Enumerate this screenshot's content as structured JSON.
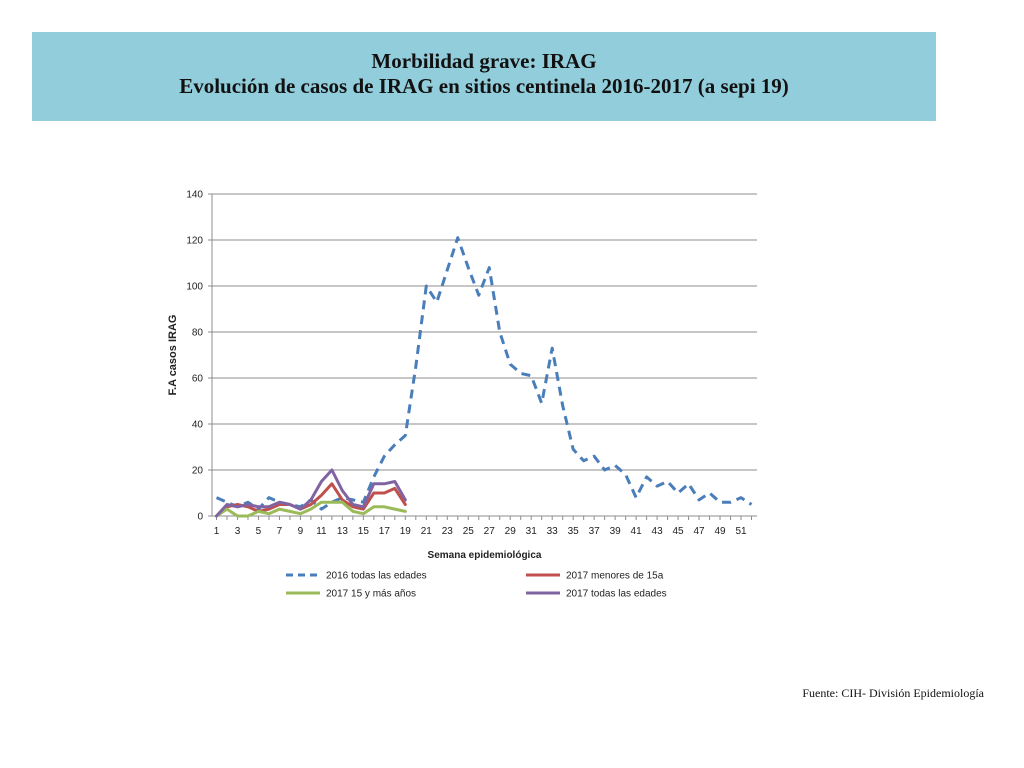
{
  "header": {
    "title": "Morbilidad grave: IRAG",
    "subtitle": "Evolución de casos de IRAG en sitios centinela 2016-2017 (a sepi 19)"
  },
  "source": "Fuente: CIH- División Epidemiología",
  "colors": {
    "banner": "#92cddc",
    "s2016": "#4a7ebb",
    "s2017_menores": "#c0504d",
    "s2017_15mas": "#9bbb59",
    "s2017_todas": "#8064a2",
    "grid": "#8c8c8c"
  },
  "chart_data": {
    "type": "line",
    "title": "",
    "xlabel": "Semana epidemiológica",
    "ylabel": "F.A casos IRAG",
    "xlim": [
      1,
      52
    ],
    "ylim": [
      0,
      140
    ],
    "y_ticks": [
      0,
      20,
      40,
      60,
      80,
      100,
      120,
      140
    ],
    "x_ticks": [
      1,
      3,
      5,
      7,
      9,
      11,
      13,
      15,
      17,
      19,
      21,
      23,
      25,
      27,
      29,
      31,
      33,
      35,
      37,
      39,
      41,
      43,
      45,
      47,
      49,
      51
    ],
    "grid": "horizontal",
    "legend_position": "bottom",
    "series": [
      {
        "name": "2016 todas las edades",
        "style": "dashed",
        "x": [
          1,
          2,
          3,
          4,
          5,
          6,
          7,
          8,
          9,
          10,
          11,
          12,
          13,
          14,
          15,
          16,
          17,
          18,
          19,
          20,
          21,
          22,
          23,
          24,
          25,
          26,
          27,
          28,
          29,
          30,
          31,
          32,
          33,
          34,
          35,
          36,
          37,
          38,
          39,
          40,
          41,
          42,
          43,
          44,
          45,
          46,
          47,
          48,
          49,
          50,
          51,
          52
        ],
        "values": [
          8,
          6,
          4,
          6,
          3,
          8,
          6,
          5,
          4,
          7,
          3,
          6,
          8,
          7,
          6,
          17,
          26,
          31,
          35,
          65,
          100,
          93,
          107,
          121,
          108,
          96,
          108,
          80,
          66,
          62,
          61,
          49,
          73,
          48,
          29,
          24,
          26,
          20,
          22,
          18,
          8,
          17,
          13,
          15,
          10,
          14,
          7,
          10,
          6,
          6,
          8,
          5
        ]
      },
      {
        "name": "2017 menores de 15a",
        "style": "solid",
        "x": [
          1,
          2,
          3,
          4,
          5,
          6,
          7,
          8,
          9,
          10,
          11,
          12,
          13,
          14,
          15,
          16,
          17,
          18,
          19
        ],
        "values": [
          0,
          4,
          5,
          4,
          2,
          3,
          5,
          5,
          3,
          5,
          9,
          14,
          7,
          4,
          3,
          10,
          10,
          12,
          5
        ]
      },
      {
        "name": "2017 15 y más años",
        "style": "solid",
        "x": [
          1,
          2,
          3,
          4,
          5,
          6,
          7,
          8,
          9,
          10,
          11,
          12,
          13,
          14,
          15,
          16,
          17,
          18,
          19
        ],
        "values": [
          0,
          3,
          0,
          0,
          2,
          1,
          3,
          2,
          1,
          3,
          6,
          6,
          6,
          2,
          1,
          4,
          4,
          3,
          2
        ]
      },
      {
        "name": "2017 todas las edades",
        "style": "solid",
        "x": [
          1,
          2,
          3,
          4,
          5,
          6,
          7,
          8,
          9,
          10,
          11,
          12,
          13,
          14,
          15,
          16,
          17,
          18,
          19
        ],
        "values": [
          0,
          5,
          4,
          5,
          4,
          4,
          6,
          5,
          3,
          7,
          15,
          20,
          11,
          5,
          4,
          14,
          14,
          15,
          7
        ]
      }
    ]
  }
}
